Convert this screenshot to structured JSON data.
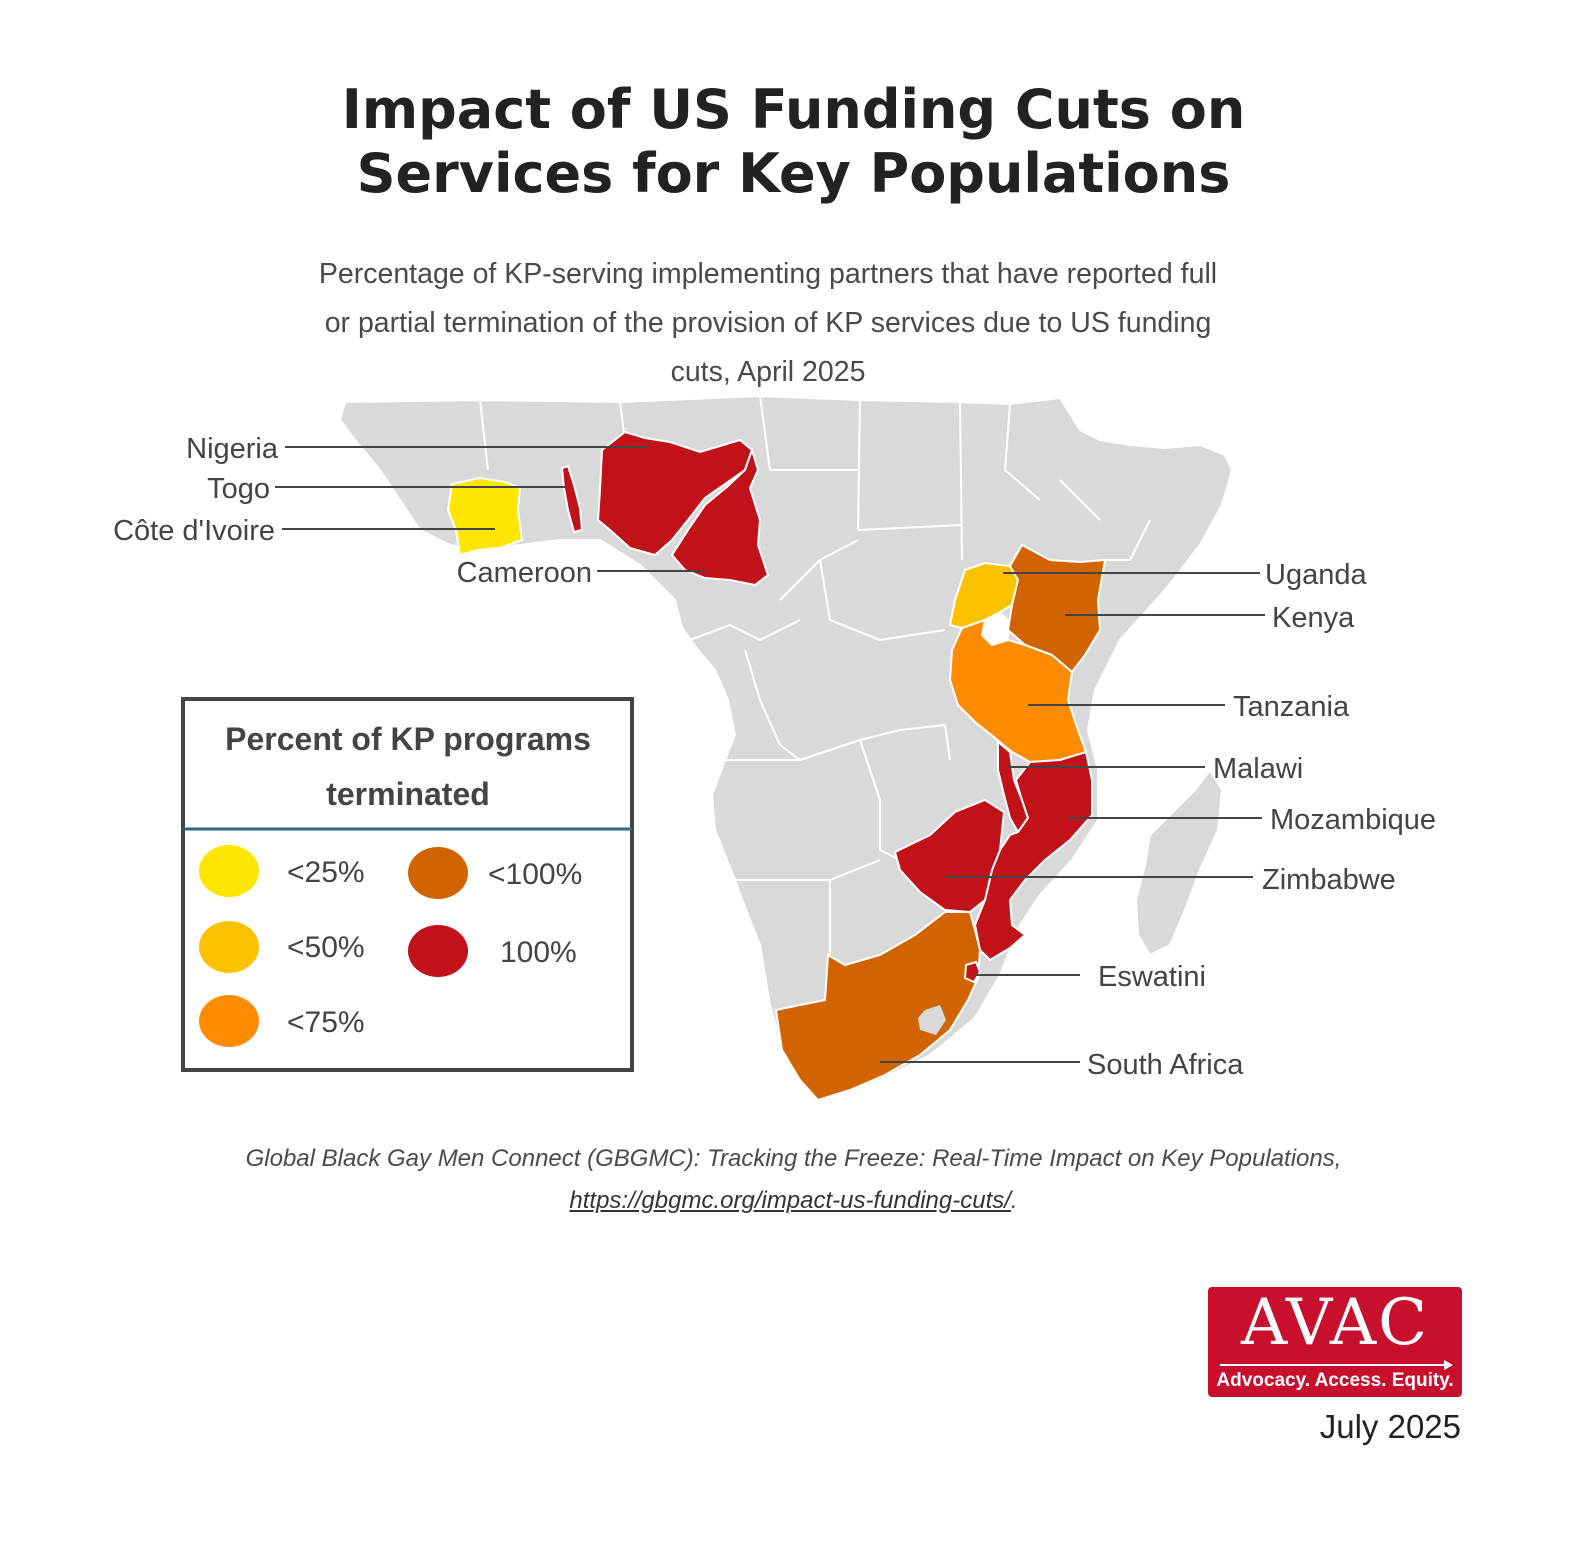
{
  "title": {
    "line1": "Impact of US Funding Cuts on",
    "line2": "Services for Key Populations"
  },
  "subtitle": {
    "line1": "Percentage of KP-serving implementing partners that have reported full",
    "line2": "or partial termination of the provision of KP services due to US funding",
    "line3": "cuts, April 2025"
  },
  "legend": {
    "title_line1": "Percent of KP programs",
    "title_line2": "terminated",
    "items": [
      {
        "label": "<25%",
        "color": "#ffe600"
      },
      {
        "label": "<50%",
        "color": "#fcc200"
      },
      {
        "label": "<75%",
        "color": "#ff8c00"
      },
      {
        "label": "<100%",
        "color": "#d26400"
      },
      {
        "label": "100%",
        "color": "#c01218"
      }
    ]
  },
  "map_labels": [
    {
      "name": "Nigeria",
      "category": "100%"
    },
    {
      "name": "Togo",
      "category": "100%"
    },
    {
      "name": "Côte d'Ivoire",
      "category": "<25%"
    },
    {
      "name": "Cameroon",
      "category": "100%"
    },
    {
      "name": "Uganda",
      "category": "<50%"
    },
    {
      "name": "Kenya",
      "category": "<100%"
    },
    {
      "name": "Tanzania",
      "category": "<75%"
    },
    {
      "name": "Malawi",
      "category": "100%"
    },
    {
      "name": "Mozambique",
      "category": "100%"
    },
    {
      "name": "Zimbabwe",
      "category": "100%"
    },
    {
      "name": "Eswatini",
      "category": "100%"
    },
    {
      "name": "South Africa",
      "category": "<100%"
    }
  ],
  "colors": {
    "land": "#d9d9d9",
    "border": "#ffffff",
    "leader": "#444444",
    "legend_rule": "#2a6b7c"
  },
  "source": {
    "line1": "Global Black Gay Men Connect (GBGMC): Tracking the Freeze: Real-Time Impact on Key Populations,",
    "link": "https://gbgmc.org/impact-us-funding-cuts/",
    "suffix": "."
  },
  "logo": {
    "word": "AVAC",
    "tagline": "Advocacy. Access. Equity."
  },
  "date": "July 2025"
}
